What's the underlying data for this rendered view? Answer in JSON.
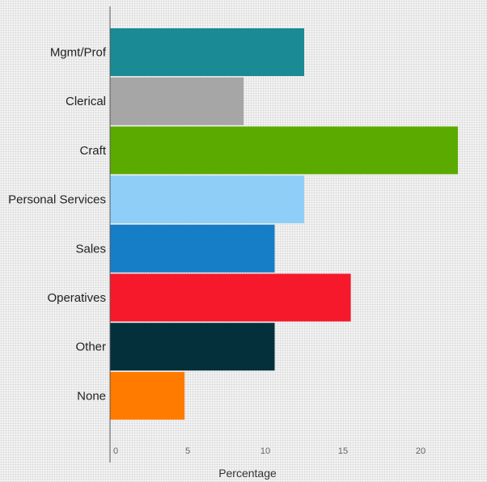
{
  "chart_data": {
    "type": "bar",
    "orientation": "horizontal",
    "categories": [
      "Mgmt/Prof",
      "Clerical",
      "Craft",
      "Personal Services",
      "Sales",
      "Operatives",
      "Other",
      "None"
    ],
    "values": [
      12.5,
      8.6,
      22.4,
      12.5,
      10.6,
      15.5,
      10.6,
      4.8
    ],
    "colors": [
      "#1a8a94",
      "#a6a6a6",
      "#5aaa00",
      "#8fcff7",
      "#167ec6",
      "#f5192b",
      "#04303b",
      "#ff7b00"
    ],
    "xlabel": "Percentage",
    "ylabel": "",
    "xlim": [
      0,
      24
    ],
    "xticks": [
      0,
      5,
      10,
      15,
      20
    ],
    "grid": false,
    "legend": "none"
  }
}
